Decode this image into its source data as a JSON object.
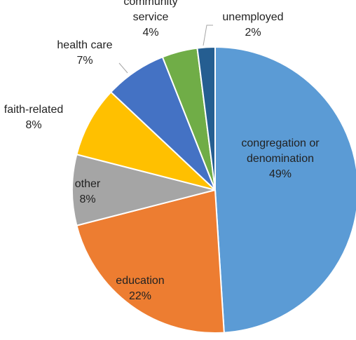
{
  "chart_data": {
    "type": "pie",
    "title": "",
    "start_angle_deg": 0,
    "direction": "clockwise",
    "slices": [
      {
        "label_lines": [
          "congregation or",
          "denomination"
        ],
        "value": 49,
        "value_label": "49%",
        "color": "#5b9bd5"
      },
      {
        "label_lines": [
          "education"
        ],
        "value": 22,
        "value_label": "22%",
        "color": "#ed7d31"
      },
      {
        "label_lines": [
          "other"
        ],
        "value": 8,
        "value_label": "8%",
        "color": "#a5a5a5"
      },
      {
        "label_lines": [
          "faith-related"
        ],
        "value": 8,
        "value_label": "8%",
        "color": "#ffc000"
      },
      {
        "label_lines": [
          "health care"
        ],
        "value": 7,
        "value_label": "7%",
        "color": "#4472c4"
      },
      {
        "label_lines": [
          "community",
          "service"
        ],
        "value": 4,
        "value_label": "4%",
        "color": "#70ad47"
      },
      {
        "label_lines": [
          "unemployed"
        ],
        "value": 2,
        "value_label": "2%",
        "color": "#255e91"
      }
    ]
  }
}
